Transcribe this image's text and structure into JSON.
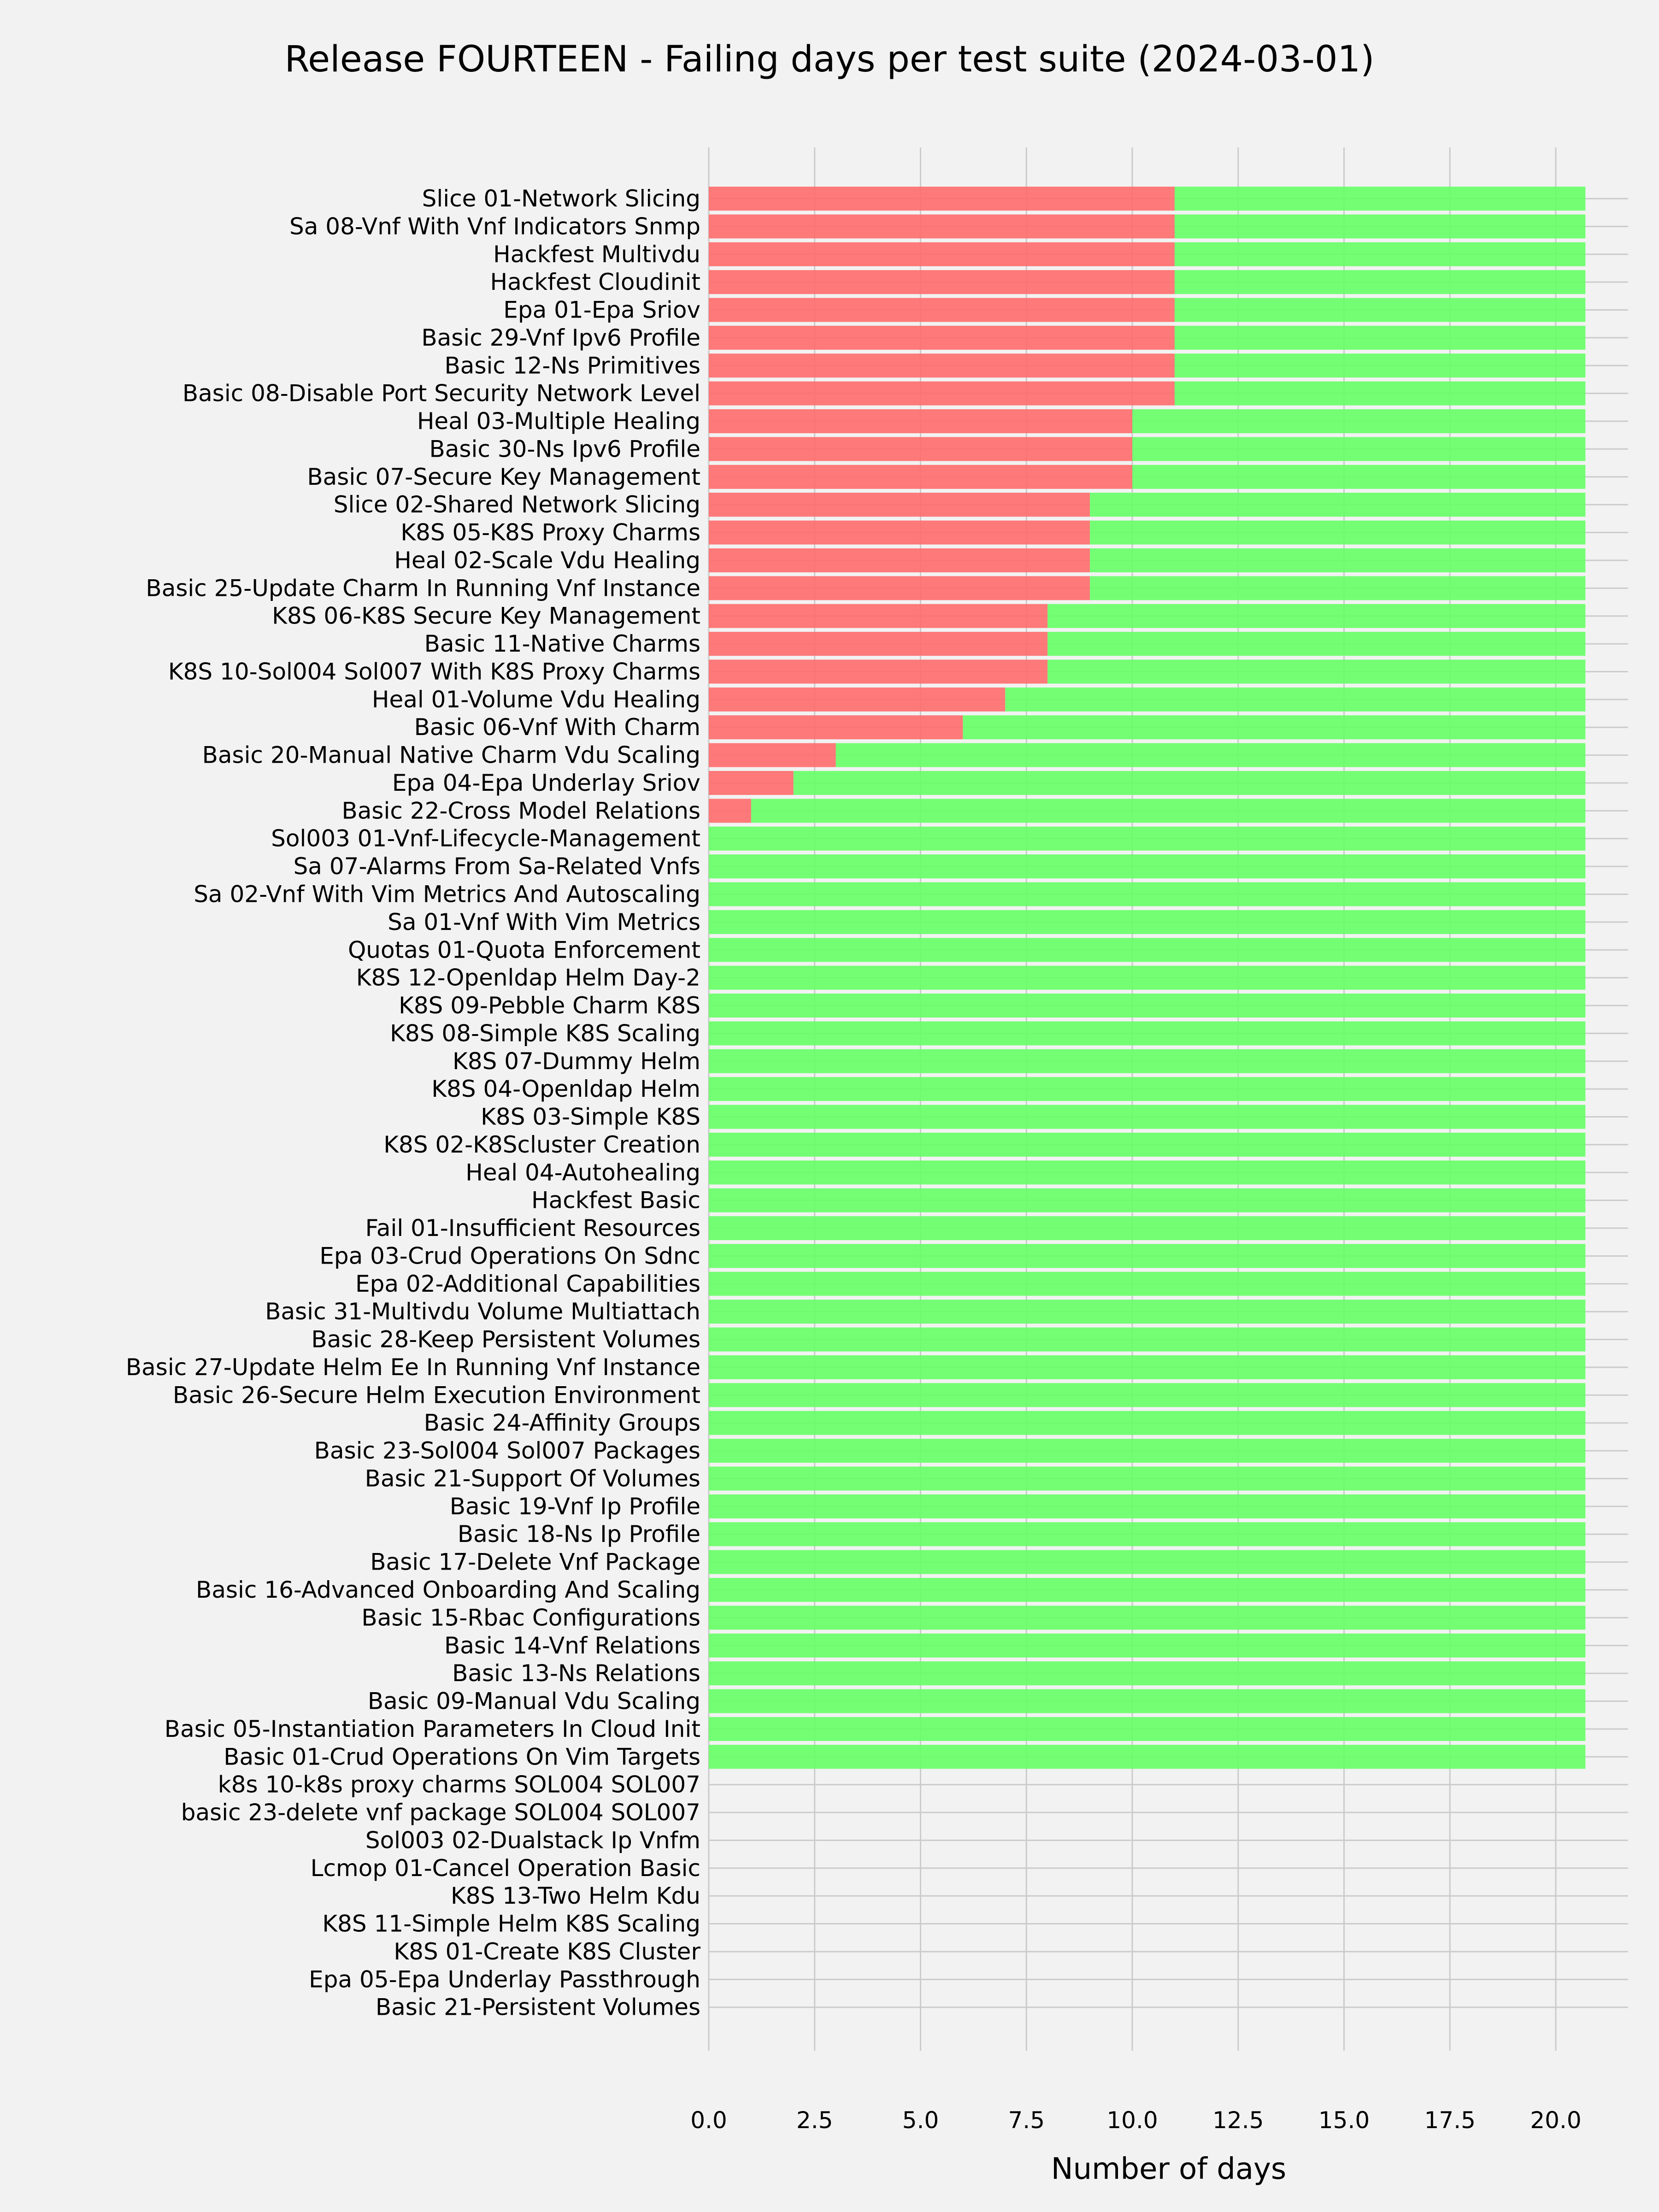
{
  "chart_data": {
    "type": "bar",
    "orientation": "horizontal",
    "stacked": true,
    "title": "Release FOURTEEN - Failing days per test suite (2024-03-01)",
    "xlabel": "Number of days",
    "ylabel": "",
    "xlim": [
      0,
      21.7
    ],
    "xticks": [
      "0.0",
      "2.5",
      "5.0",
      "7.5",
      "10.0",
      "12.5",
      "15.0",
      "17.5",
      "20.0"
    ],
    "xtick_values": [
      0,
      2.5,
      5,
      7.5,
      10,
      12.5,
      15,
      17.5,
      20
    ],
    "grid": true,
    "colors": {
      "failing": "#ff6b6b",
      "passing": "#66ff66",
      "background": "#f2f2f2",
      "grid": "#cbcbcb"
    },
    "categories": [
      "Slice 01-Network Slicing",
      "Sa 08-Vnf With Vnf Indicators Snmp",
      "Hackfest Multivdu",
      "Hackfest Cloudinit",
      "Epa 01-Epa Sriov",
      "Basic 29-Vnf Ipv6 Profile",
      "Basic 12-Ns Primitives",
      "Basic 08-Disable Port Security Network Level",
      "Heal 03-Multiple Healing",
      "Basic 30-Ns Ipv6 Profile",
      "Basic 07-Secure Key Management",
      "Slice 02-Shared Network Slicing",
      "K8S 05-K8S Proxy Charms",
      "Heal 02-Scale Vdu Healing",
      "Basic 25-Update Charm In Running Vnf Instance",
      "K8S 06-K8S Secure Key Management",
      "Basic 11-Native Charms",
      "K8S 10-Sol004 Sol007 With K8S Proxy Charms",
      "Heal 01-Volume Vdu Healing",
      "Basic 06-Vnf With Charm",
      "Basic 20-Manual Native Charm Vdu Scaling",
      "Epa 04-Epa Underlay Sriov",
      "Basic 22-Cross Model Relations",
      "Sol003 01-Vnf-Lifecycle-Management",
      "Sa 07-Alarms From Sa-Related Vnfs",
      "Sa 02-Vnf With Vim Metrics And Autoscaling",
      "Sa 01-Vnf With Vim Metrics",
      "Quotas 01-Quota Enforcement",
      "K8S 12-Openldap Helm Day-2",
      "K8S 09-Pebble Charm K8S",
      "K8S 08-Simple K8S Scaling",
      "K8S 07-Dummy Helm",
      "K8S 04-Openldap Helm",
      "K8S 03-Simple K8S",
      "K8S 02-K8Scluster Creation",
      "Heal 04-Autohealing",
      "Hackfest Basic",
      "Fail 01-Insufficient Resources",
      "Epa 03-Crud Operations On Sdnc",
      "Epa 02-Additional Capabilities",
      "Basic 31-Multivdu Volume Multiattach",
      "Basic 28-Keep Persistent Volumes",
      "Basic 27-Update Helm Ee In Running Vnf Instance",
      "Basic 26-Secure Helm Execution Environment",
      "Basic 24-Affinity Groups",
      "Basic 23-Sol004 Sol007 Packages",
      "Basic 21-Support Of Volumes",
      "Basic 19-Vnf Ip Profile",
      "Basic 18-Ns Ip Profile",
      "Basic 17-Delete Vnf Package",
      "Basic 16-Advanced Onboarding And Scaling",
      "Basic 15-Rbac Configurations",
      "Basic 14-Vnf Relations",
      "Basic 13-Ns Relations",
      "Basic 09-Manual Vdu Scaling",
      "Basic 05-Instantiation Parameters In Cloud Init",
      "Basic 01-Crud Operations On Vim Targets",
      "k8s 10-k8s proxy charms SOL004 SOL007",
      "basic 23-delete vnf package SOL004 SOL007",
      "Sol003 02-Dualstack Ip Vnfm",
      "Lcmop 01-Cancel Operation Basic",
      "K8S 13-Two Helm Kdu",
      "K8S 11-Simple Helm K8S Scaling",
      "K8S 01-Create K8S Cluster",
      "Epa 05-Epa Underlay Passthrough",
      "Basic 21-Persistent Volumes"
    ],
    "series": [
      {
        "key": "failing",
        "values": [
          11,
          11,
          11,
          11,
          11,
          11,
          11,
          11,
          10,
          10,
          10,
          9,
          9,
          9,
          9,
          8,
          8,
          8,
          7,
          6,
          3,
          2,
          1,
          0,
          0,
          0,
          0,
          0,
          0,
          0,
          0,
          0,
          0,
          0,
          0,
          0,
          0,
          0,
          0,
          0,
          0,
          0,
          0,
          0,
          0,
          0,
          0,
          0,
          0,
          0,
          0,
          0,
          0,
          0,
          0,
          0,
          0,
          0,
          0,
          0,
          0,
          0,
          0,
          0,
          0,
          0
        ]
      },
      {
        "key": "passing",
        "values": [
          9.7,
          9.7,
          9.7,
          9.7,
          9.7,
          9.7,
          9.7,
          9.7,
          10.7,
          10.7,
          10.7,
          11.7,
          11.7,
          11.7,
          11.7,
          12.7,
          12.7,
          12.7,
          13.7,
          14.7,
          17.7,
          18.7,
          19.7,
          20.7,
          20.7,
          20.7,
          20.7,
          20.7,
          20.7,
          20.7,
          20.7,
          20.7,
          20.7,
          20.7,
          20.7,
          20.7,
          20.7,
          20.7,
          20.7,
          20.7,
          20.7,
          20.7,
          20.7,
          20.7,
          20.7,
          20.7,
          20.7,
          20.7,
          20.7,
          20.7,
          20.7,
          20.7,
          20.7,
          20.7,
          20.7,
          20.7,
          20.7,
          0,
          0,
          0,
          0,
          0,
          0,
          0,
          0,
          0
        ]
      }
    ]
  }
}
